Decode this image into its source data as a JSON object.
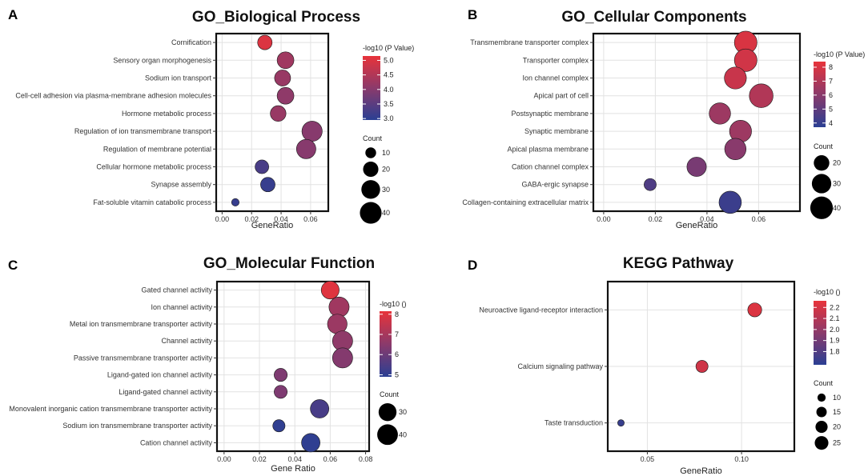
{
  "chart_data": [
    {
      "letter": "A",
      "type": "scatter",
      "title": "GO_Biological Process",
      "xlabel": "GeneRatio",
      "xlim": [
        -0.004,
        0.072
      ],
      "xticks": [
        0,
        0.02,
        0.04,
        0.06
      ],
      "xtick_labels": [
        "0.00",
        "0.02",
        "0.04",
        "0.06"
      ],
      "categories": [
        "Cornification",
        "Sensory organ morphogenesis",
        "Sodium ion transport",
        "Cell-cell adhesion via plasma-membrane adhesion molecules",
        "Hormone metabolic process",
        "Regulation of ion transmembrane transport",
        "Regulation of membrane potential",
        "Cellular hormone metabolic process",
        "Synapse assembly",
        "Fat-soluble vitamin catabolic process"
      ],
      "x": [
        0.029,
        0.043,
        0.041,
        0.043,
        0.038,
        0.061,
        0.057,
        0.027,
        0.031,
        0.009
      ],
      "color_value": [
        5.0,
        4.3,
        4.2,
        4.1,
        4.2,
        4.0,
        4.0,
        3.3,
        3.1,
        3.1
      ],
      "count": [
        18,
        24,
        22,
        24,
        21,
        35,
        32,
        16,
        18,
        5
      ],
      "color_legend": {
        "title": "-log10 (P Value)",
        "min": 2.95,
        "max": 5.15,
        "ticks": [
          3.0,
          3.5,
          4.0,
          4.5,
          5.0
        ],
        "labels": [
          "3.0",
          "3.5",
          "4.0",
          "4.5",
          "5.0"
        ]
      },
      "size_legend": {
        "title": "Count",
        "values": [
          10,
          20,
          30,
          40
        ],
        "labels": [
          "10",
          "20",
          "30",
          "40"
        ]
      },
      "size_range": [
        5,
        42
      ]
    },
    {
      "letter": "B",
      "type": "scatter",
      "title": "GO_Cellular Components",
      "xlabel": "GeneRatio",
      "xlim": [
        -0.004,
        0.076
      ],
      "xticks": [
        0,
        0.02,
        0.04,
        0.06
      ],
      "xtick_labels": [
        "0.00",
        "0.02",
        "0.04",
        "0.06"
      ],
      "categories": [
        "Transmembrane transporter complex",
        "Transporter complex",
        "Ion channel complex",
        "Apical part of cell",
        "Postsynaptic membrane",
        "Synaptic membrane",
        "Apical plasma membrane",
        "Cation channel complex",
        "GABA-ergic synapse",
        "Collagen-containing extracellular matrix"
      ],
      "x": [
        0.055,
        0.055,
        0.051,
        0.061,
        0.045,
        0.053,
        0.051,
        0.036,
        0.018,
        0.049
      ],
      "color_value": [
        8.0,
        7.8,
        7.6,
        7.0,
        6.5,
        6.5,
        6.0,
        5.6,
        4.6,
        4.1
      ],
      "count": [
        40,
        40,
        38,
        44,
        36,
        38,
        36,
        30,
        13,
        39
      ],
      "color_legend": {
        "title": "-log10 (P Value)",
        "min": 3.7,
        "max": 8.4,
        "ticks": [
          4,
          5,
          6,
          7,
          8
        ],
        "labels": [
          "4",
          "5",
          "6",
          "7",
          "8"
        ]
      },
      "size_legend": {
        "title": "Count",
        "values": [
          20,
          30,
          40
        ],
        "labels": [
          "20",
          "30",
          "40"
        ]
      },
      "size_range": [
        12,
        46
      ]
    },
    {
      "letter": "C",
      "type": "scatter",
      "title": "GO_Molecular Function",
      "xlabel": "Gene Ratio",
      "xlim": [
        -0.004,
        0.082
      ],
      "xticks": [
        0,
        0.02,
        0.04,
        0.06,
        0.08
      ],
      "xtick_labels": [
        "0.00",
        "0.02",
        "0.04",
        "0.06",
        "0.08"
      ],
      "categories": [
        "Gated channel activity",
        "Ion channel activity",
        "Metal ion transmembrane transporter activity",
        "Channel activity",
        "Passive transmembrane transporter activity",
        "Ligand-gated ion channel activity",
        "Ligand-gated channel activity",
        "Monovalent inorganic cation transmembrane transporter activity",
        "Sodium ion transmembrane transporter activity",
        "Cation channel activity"
      ],
      "x": [
        0.06,
        0.065,
        0.064,
        0.067,
        0.067,
        0.032,
        0.032,
        0.054,
        0.031,
        0.049
      ],
      "color_value": [
        8.0,
        6.9,
        6.8,
        6.6,
        6.4,
        6.3,
        6.3,
        5.4,
        5.0,
        5.0
      ],
      "count": [
        30,
        38,
        36,
        38,
        38,
        16,
        16,
        32,
        14,
        32
      ],
      "color_legend": {
        "title": "-log10 ()",
        "min": 4.9,
        "max": 8.15,
        "ticks": [
          5,
          6,
          7,
          8
        ],
        "labels": [
          "5",
          "6",
          "7",
          "8"
        ]
      },
      "size_legend": {
        "title": "Count",
        "values": [
          30,
          40
        ],
        "labels": [
          "30",
          "40"
        ]
      },
      "size_range": [
        14,
        40
      ]
    },
    {
      "letter": "D",
      "type": "scatter",
      "title": "KEGG Pathway",
      "xlabel": "GeneRatio",
      "xlim": [
        0.029,
        0.128
      ],
      "xticks": [
        0.05,
        0.1
      ],
      "xtick_labels": [
        "0.05",
        "0.10"
      ],
      "categories": [
        "Neuroactive ligand-receptor interaction",
        "Calcium signaling pathway",
        "Taste transduction"
      ],
      "x": [
        0.107,
        0.079,
        0.036
      ],
      "color_value": [
        2.22,
        2.18,
        1.72
      ],
      "count": [
        26,
        20,
        7
      ],
      "color_legend": {
        "title": "-log10 ()",
        "min": 1.68,
        "max": 2.26,
        "ticks": [
          1.8,
          1.9,
          2.0,
          2.1,
          2.2
        ],
        "labels": [
          "1.8",
          "1.9",
          "2.0",
          "2.1",
          "2.2"
        ]
      },
      "size_legend": {
        "title": "Count",
        "values": [
          10,
          15,
          20,
          25
        ],
        "labels": [
          "10",
          "15",
          "20",
          "25"
        ]
      },
      "size_range": [
        6,
        27
      ]
    }
  ],
  "colors": {
    "low": "#2a3f93",
    "mid": "#8b3a6b",
    "high": "#e8333a",
    "grid": "#e2e2e2",
    "frame": "#111111"
  }
}
